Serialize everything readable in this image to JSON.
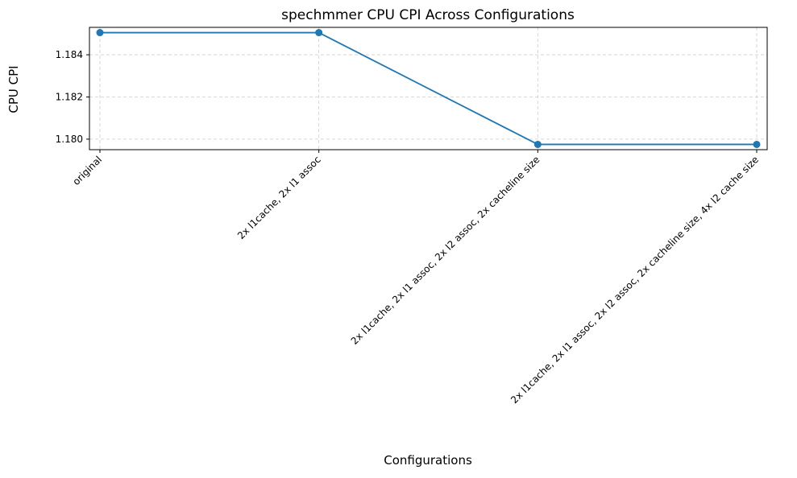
{
  "chart_data": {
    "type": "line",
    "title": "spechmmer CPU CPI Across Configurations",
    "xlabel": "Configurations",
    "ylabel": "CPU CPI",
    "categories": [
      "original",
      "2x l1cache, 2x l1 assoc",
      "2x l1cache, 2x l1 assoc, 2x l2 assoc, 2x cacheline size",
      "2x l1cache, 2x l1 assoc, 2x l2 assoc, 2x cacheline size, 4x l2 cache size"
    ],
    "series": [
      {
        "values": [
          1.18505,
          1.18505,
          1.17975,
          1.17975
        ]
      }
    ],
    "ylim": [
      1.1795,
      1.1853
    ],
    "yticks": [
      1.18,
      1.182,
      1.184
    ],
    "ytick_labels": [
      "1.180",
      "1.182",
      "1.184"
    ],
    "grid": true,
    "line_color": "#1f77b4",
    "marker": "circle"
  }
}
